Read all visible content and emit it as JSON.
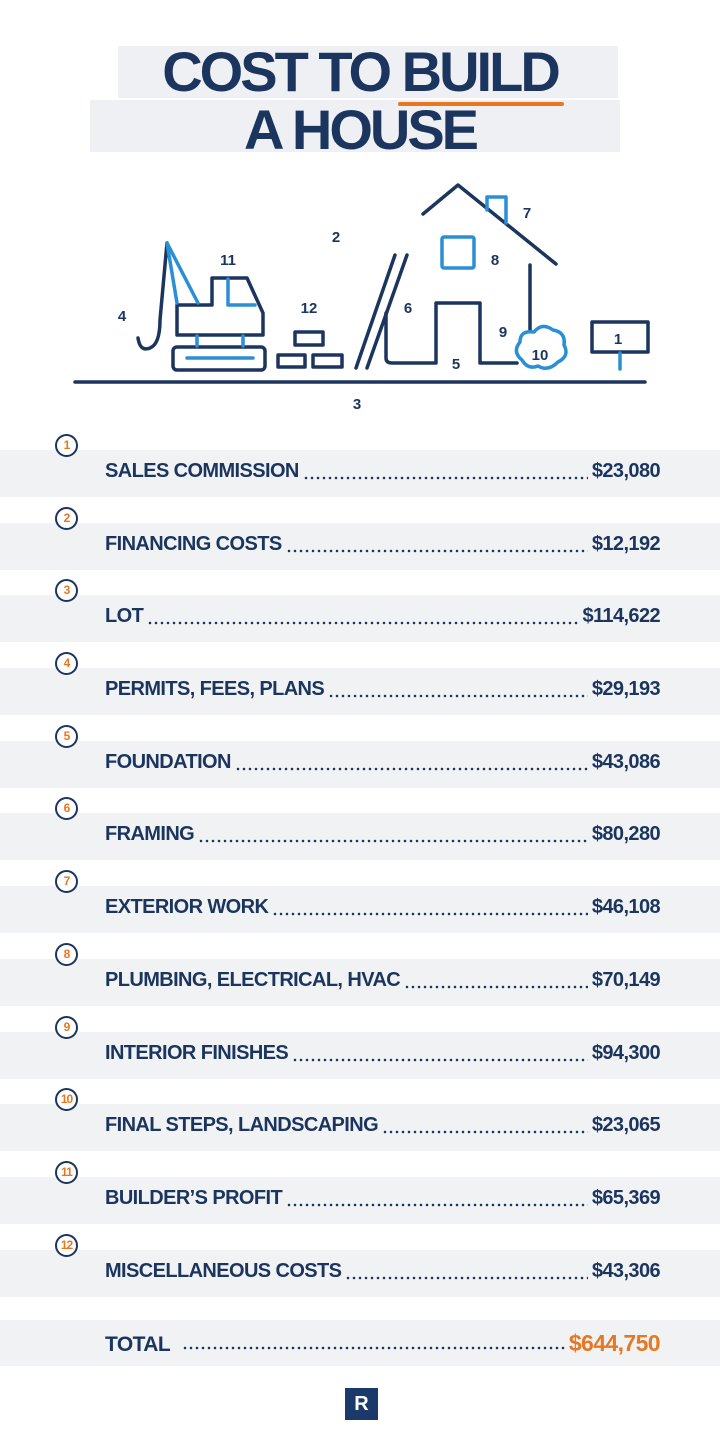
{
  "title": {
    "line1_a": "COST TO ",
    "line1_b": "BUILD",
    "line2": "A HOUSE"
  },
  "colors": {
    "navy": "#1b355e",
    "blue": "#2a8fd4",
    "orange": "#e87722",
    "band": "#f1f2f4"
  },
  "illustration_labels": {
    "sign": "1",
    "sky": "2",
    "ground": "3",
    "hook": "4",
    "foundation": "5",
    "framing": "6",
    "chimney": "7",
    "window": "8",
    "interior": "9",
    "bush": "10",
    "excavator": "11",
    "bricks": "12"
  },
  "items": [
    {
      "num": "1",
      "label": "SALES COMMISSION",
      "value": "$23,080"
    },
    {
      "num": "2",
      "label": "FINANCING COSTS",
      "value": "$12,192"
    },
    {
      "num": "3",
      "label": "LOT",
      "value": "$114,622"
    },
    {
      "num": "4",
      "label": "PERMITS, FEES, PLANS",
      "value": "$29,193"
    },
    {
      "num": "5",
      "label": "FOUNDATION",
      "value": "$43,086"
    },
    {
      "num": "6",
      "label": "FRAMING",
      "value": "$80,280"
    },
    {
      "num": "7",
      "label": "EXTERIOR WORK",
      "value": "$46,108"
    },
    {
      "num": "8",
      "label": "PLUMBING, ELECTRICAL, HVAC",
      "value": "$70,149"
    },
    {
      "num": "9",
      "label": "INTERIOR FINISHES",
      "value": "$94,300"
    },
    {
      "num": "10",
      "label": "FINAL STEPS, LANDSCAPING",
      "value": "$23,065"
    },
    {
      "num": "11",
      "label": "BUILDER’S PROFIT",
      "value": "$65,369"
    },
    {
      "num": "12",
      "label": "MISCELLANEOUS COSTS",
      "value": "$43,306"
    }
  ],
  "total": {
    "label": "TOTAL",
    "value": "$644,750"
  },
  "logo": {
    "letter": "R"
  }
}
